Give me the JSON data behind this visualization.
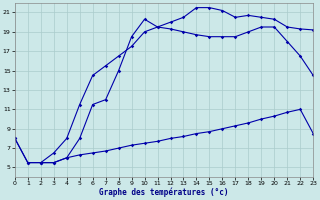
{
  "title": "Graphe des températures (°c)",
  "bg_color": "#cce8e8",
  "grid_color": "#aacccc",
  "line_color": "#0000aa",
  "xlim": [
    0,
    23
  ],
  "ylim": [
    4,
    22
  ],
  "xticks": [
    0,
    1,
    2,
    3,
    4,
    5,
    6,
    7,
    8,
    9,
    10,
    11,
    12,
    13,
    14,
    15,
    16,
    17,
    18,
    19,
    20,
    21,
    22,
    23
  ],
  "yticks": [
    5,
    7,
    9,
    11,
    13,
    15,
    17,
    19,
    21
  ],
  "curve_min_x": [
    0,
    1,
    2,
    3,
    4,
    5,
    6,
    7,
    8,
    9,
    10,
    11,
    12,
    13,
    14,
    15,
    16,
    17,
    18,
    19,
    20,
    21,
    22,
    23
  ],
  "curve_min_y": [
    8.0,
    5.5,
    5.5,
    5.5,
    6.0,
    6.3,
    6.5,
    6.7,
    7.0,
    7.3,
    7.5,
    7.7,
    8.0,
    8.2,
    8.5,
    8.7,
    9.0,
    9.3,
    9.6,
    10.0,
    10.3,
    10.7,
    11.0,
    8.5
  ],
  "curve_mid_x": [
    0,
    1,
    2,
    3,
    4,
    5,
    6,
    7,
    8,
    9,
    10,
    11,
    12,
    13,
    14,
    15,
    16,
    17,
    18,
    19,
    20,
    21,
    22,
    23
  ],
  "curve_mid_y": [
    8.0,
    5.5,
    5.5,
    6.5,
    8.0,
    11.5,
    14.5,
    15.5,
    16.5,
    17.5,
    19.0,
    19.5,
    19.3,
    19.0,
    18.7,
    18.5,
    18.5,
    18.5,
    19.0,
    19.5,
    19.5,
    18.0,
    16.5,
    14.5
  ],
  "curve_top_x": [
    2,
    3,
    4,
    5,
    6,
    7,
    8,
    9,
    10,
    11,
    12,
    13,
    14,
    15,
    16,
    17,
    18,
    19,
    20,
    21,
    22,
    23
  ],
  "curve_top_y": [
    5.5,
    5.5,
    6.0,
    8.0,
    11.5,
    12.0,
    15.0,
    18.5,
    20.3,
    19.5,
    20.0,
    20.5,
    21.5,
    21.5,
    21.2,
    20.5,
    20.7,
    20.5,
    20.3,
    19.5,
    19.3,
    19.2
  ]
}
